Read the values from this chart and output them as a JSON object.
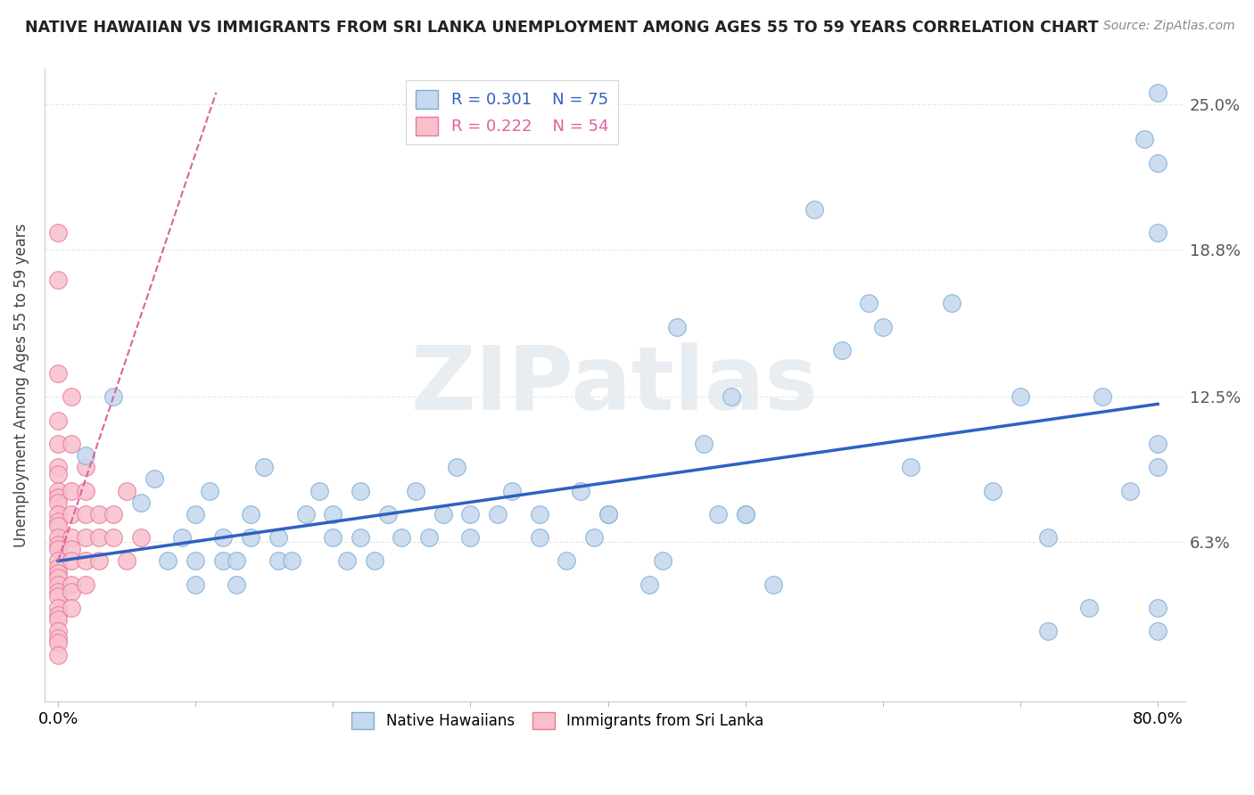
{
  "title": "NATIVE HAWAIIAN VS IMMIGRANTS FROM SRI LANKA UNEMPLOYMENT AMONG AGES 55 TO 59 YEARS CORRELATION CHART",
  "source": "Source: ZipAtlas.com",
  "ylabel": "Unemployment Among Ages 55 to 59 years",
  "xlim": [
    -0.01,
    0.82
  ],
  "ylim": [
    -0.005,
    0.265
  ],
  "xticks": [
    0.0,
    0.8
  ],
  "xticklabels": [
    "0.0%",
    "80.0%"
  ],
  "yticks_right": [
    0.063,
    0.125,
    0.188,
    0.25
  ],
  "ytick_labels_right": [
    "6.3%",
    "12.5%",
    "18.8%",
    "25.0%"
  ],
  "blue_R": 0.301,
  "blue_N": 75,
  "pink_R": 0.222,
  "pink_N": 54,
  "blue_color": "#c5d8ed",
  "pink_color": "#f9c0cc",
  "blue_edge_color": "#7aaed6",
  "pink_edge_color": "#e87898",
  "blue_line_color": "#3060c0",
  "pink_line_color": "#e060a0",
  "blue_scatter": [
    [
      0.02,
      0.1
    ],
    [
      0.04,
      0.125
    ],
    [
      0.06,
      0.08
    ],
    [
      0.07,
      0.09
    ],
    [
      0.08,
      0.055
    ],
    [
      0.09,
      0.065
    ],
    [
      0.1,
      0.075
    ],
    [
      0.1,
      0.045
    ],
    [
      0.1,
      0.055
    ],
    [
      0.11,
      0.085
    ],
    [
      0.12,
      0.055
    ],
    [
      0.12,
      0.065
    ],
    [
      0.13,
      0.045
    ],
    [
      0.13,
      0.055
    ],
    [
      0.14,
      0.075
    ],
    [
      0.14,
      0.065
    ],
    [
      0.15,
      0.095
    ],
    [
      0.16,
      0.055
    ],
    [
      0.16,
      0.065
    ],
    [
      0.17,
      0.055
    ],
    [
      0.18,
      0.075
    ],
    [
      0.19,
      0.085
    ],
    [
      0.2,
      0.065
    ],
    [
      0.2,
      0.075
    ],
    [
      0.21,
      0.055
    ],
    [
      0.22,
      0.065
    ],
    [
      0.22,
      0.085
    ],
    [
      0.23,
      0.055
    ],
    [
      0.24,
      0.075
    ],
    [
      0.25,
      0.065
    ],
    [
      0.26,
      0.085
    ],
    [
      0.27,
      0.065
    ],
    [
      0.28,
      0.075
    ],
    [
      0.29,
      0.095
    ],
    [
      0.3,
      0.065
    ],
    [
      0.3,
      0.075
    ],
    [
      0.32,
      0.075
    ],
    [
      0.33,
      0.085
    ],
    [
      0.35,
      0.065
    ],
    [
      0.35,
      0.075
    ],
    [
      0.37,
      0.055
    ],
    [
      0.38,
      0.085
    ],
    [
      0.39,
      0.065
    ],
    [
      0.4,
      0.075
    ],
    [
      0.4,
      0.075
    ],
    [
      0.43,
      0.045
    ],
    [
      0.44,
      0.055
    ],
    [
      0.45,
      0.155
    ],
    [
      0.47,
      0.105
    ],
    [
      0.48,
      0.075
    ],
    [
      0.49,
      0.125
    ],
    [
      0.5,
      0.075
    ],
    [
      0.5,
      0.075
    ],
    [
      0.52,
      0.045
    ],
    [
      0.55,
      0.205
    ],
    [
      0.57,
      0.145
    ],
    [
      0.59,
      0.165
    ],
    [
      0.6,
      0.155
    ],
    [
      0.62,
      0.095
    ],
    [
      0.65,
      0.165
    ],
    [
      0.68,
      0.085
    ],
    [
      0.7,
      0.125
    ],
    [
      0.72,
      0.065
    ],
    [
      0.72,
      0.025
    ],
    [
      0.75,
      0.035
    ],
    [
      0.76,
      0.125
    ],
    [
      0.78,
      0.085
    ],
    [
      0.79,
      0.235
    ],
    [
      0.8,
      0.105
    ],
    [
      0.8,
      0.225
    ],
    [
      0.8,
      0.195
    ],
    [
      0.8,
      0.255
    ],
    [
      0.8,
      0.095
    ],
    [
      0.8,
      0.035
    ],
    [
      0.8,
      0.025
    ]
  ],
  "pink_scatter": [
    [
      0.0,
      0.195
    ],
    [
      0.0,
      0.175
    ],
    [
      0.0,
      0.135
    ],
    [
      0.0,
      0.115
    ],
    [
      0.0,
      0.105
    ],
    [
      0.0,
      0.095
    ],
    [
      0.0,
      0.092
    ],
    [
      0.0,
      0.085
    ],
    [
      0.0,
      0.082
    ],
    [
      0.0,
      0.08
    ],
    [
      0.0,
      0.075
    ],
    [
      0.0,
      0.072
    ],
    [
      0.0,
      0.07
    ],
    [
      0.0,
      0.065
    ],
    [
      0.0,
      0.062
    ],
    [
      0.0,
      0.06
    ],
    [
      0.0,
      0.055
    ],
    [
      0.0,
      0.052
    ],
    [
      0.0,
      0.05
    ],
    [
      0.0,
      0.048
    ],
    [
      0.0,
      0.045
    ],
    [
      0.0,
      0.042
    ],
    [
      0.0,
      0.04
    ],
    [
      0.0,
      0.035
    ],
    [
      0.0,
      0.032
    ],
    [
      0.0,
      0.03
    ],
    [
      0.0,
      0.025
    ],
    [
      0.0,
      0.022
    ],
    [
      0.0,
      0.02
    ],
    [
      0.0,
      0.015
    ],
    [
      0.01,
      0.125
    ],
    [
      0.01,
      0.105
    ],
    [
      0.01,
      0.085
    ],
    [
      0.01,
      0.075
    ],
    [
      0.01,
      0.065
    ],
    [
      0.01,
      0.06
    ],
    [
      0.01,
      0.055
    ],
    [
      0.01,
      0.045
    ],
    [
      0.01,
      0.042
    ],
    [
      0.01,
      0.035
    ],
    [
      0.02,
      0.095
    ],
    [
      0.02,
      0.085
    ],
    [
      0.02,
      0.075
    ],
    [
      0.02,
      0.065
    ],
    [
      0.02,
      0.055
    ],
    [
      0.02,
      0.045
    ],
    [
      0.03,
      0.075
    ],
    [
      0.03,
      0.065
    ],
    [
      0.03,
      0.055
    ],
    [
      0.04,
      0.075
    ],
    [
      0.04,
      0.065
    ],
    [
      0.05,
      0.085
    ],
    [
      0.05,
      0.055
    ],
    [
      0.06,
      0.065
    ]
  ],
  "blue_trendline": [
    [
      0.0,
      0.055
    ],
    [
      0.8,
      0.122
    ]
  ],
  "pink_trendline": [
    [
      0.0,
      0.055
    ],
    [
      0.115,
      0.255
    ]
  ],
  "grid_color": "#e8e8e8",
  "background_color": "#ffffff",
  "watermark_color": "#e8edf2",
  "watermark_text": "ZIPatlas"
}
